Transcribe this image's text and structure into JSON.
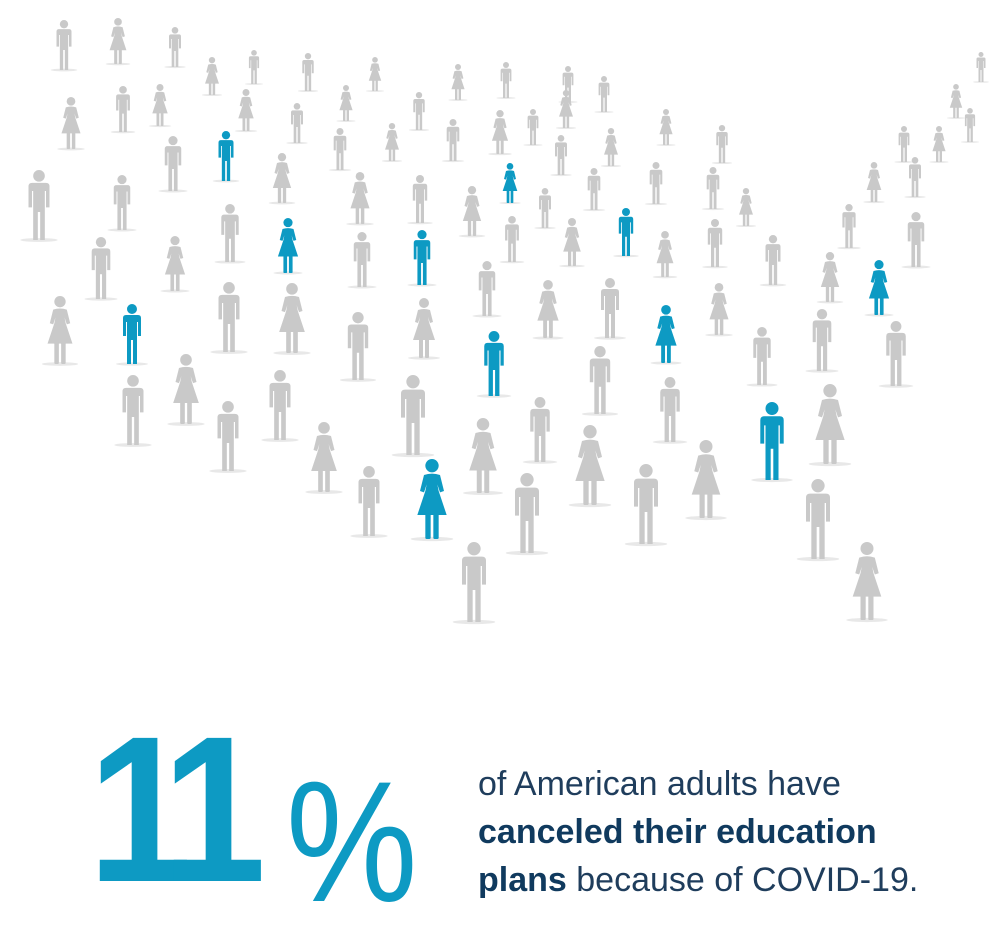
{
  "statistic": {
    "number": "11",
    "percent_sign": "%",
    "value_percent": 11
  },
  "caption": {
    "line1": "of American adults have",
    "bold_phrase": "canceled their education",
    "bold_word": "plans",
    "line3_rest": " because of COVID-19."
  },
  "icon": "person-figure-icon",
  "colors": {
    "highlight": "#0d9ac3",
    "figure_gray": "#c9c9c9",
    "caption_text": "#1f3d5c"
  }
}
